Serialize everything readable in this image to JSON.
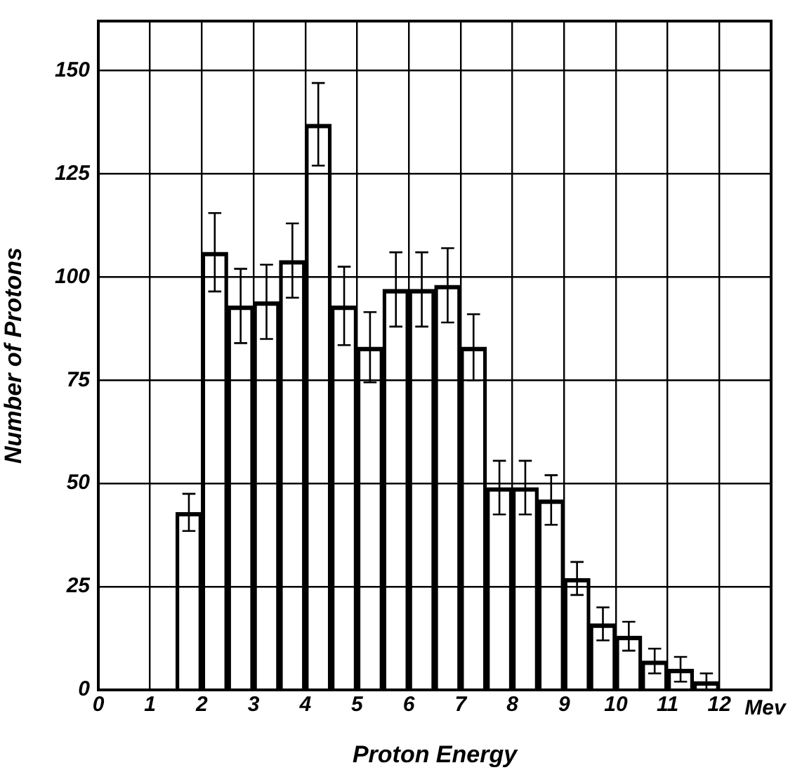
{
  "chart_data": {
    "type": "bar",
    "xlabel": "Proton Energy",
    "ylabel": "Number of Protons",
    "annotations": [
      "Mev"
    ],
    "x": [
      1.75,
      2.25,
      2.75,
      3.25,
      3.75,
      4.25,
      4.75,
      5.25,
      5.75,
      6.25,
      6.75,
      7.25,
      7.75,
      8.25,
      8.75,
      9.25,
      9.75,
      10.25,
      10.75,
      11.25,
      11.75
    ],
    "values": [
      43,
      106,
      93,
      94,
      104,
      137,
      93,
      83,
      97,
      97,
      98,
      83,
      49,
      49,
      46,
      27,
      16,
      13,
      7,
      5,
      2
    ],
    "errors": [
      4.5,
      9.5,
      9,
      9,
      9,
      10,
      9.5,
      8.5,
      9,
      9,
      9,
      8,
      6.5,
      6.5,
      6,
      4,
      4,
      3.5,
      3,
      3,
      2
    ],
    "color": "#000000",
    "xlim": [
      0,
      13
    ],
    "xticks": [
      0,
      1,
      2,
      3,
      4,
      5,
      6,
      7,
      8,
      9,
      10,
      11,
      12
    ],
    "ylim": [
      0,
      162
    ],
    "yticks": [
      0,
      25,
      50,
      75,
      100,
      125,
      150
    ],
    "grid": true,
    "legend": false
  }
}
